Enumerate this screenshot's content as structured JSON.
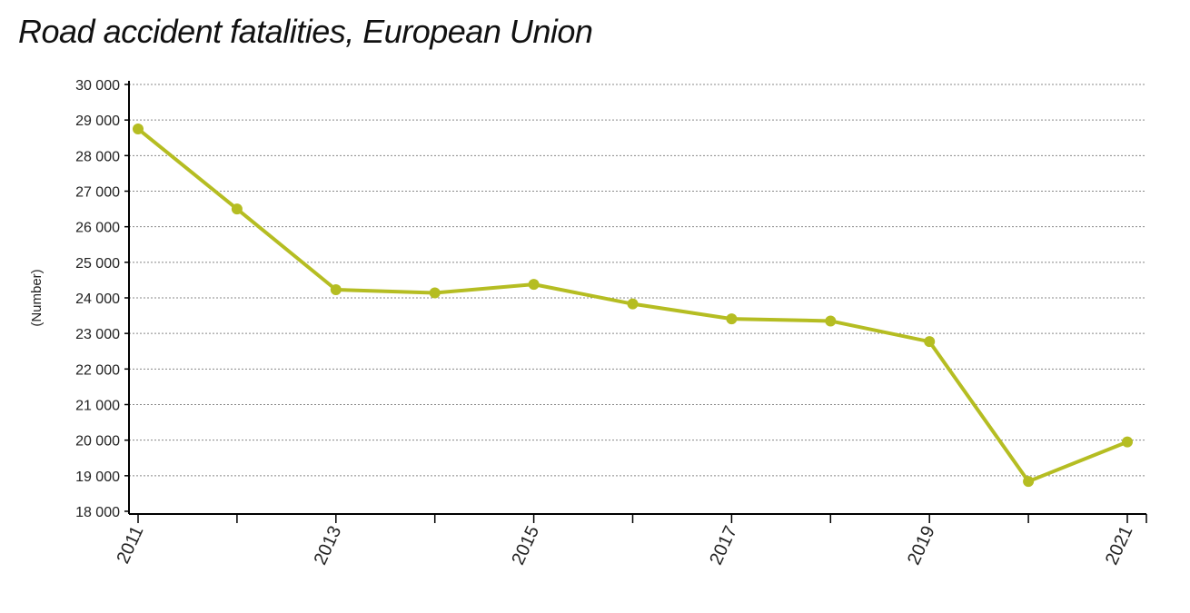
{
  "chart_data": {
    "type": "line",
    "title": "Road accident fatalities, European Union",
    "xlabel": "",
    "ylabel": "(Number)",
    "x": [
      2011,
      2012,
      2013,
      2014,
      2015,
      2016,
      2017,
      2018,
      2019,
      2020,
      2021
    ],
    "x_tick_labels": [
      "2011",
      "2013",
      "2015",
      "2017",
      "2019",
      "2021"
    ],
    "y_tick_labels": [
      "30 000",
      "29 000",
      "28 000",
      "27 000",
      "26 000",
      "25 000",
      "24 000",
      "23 000",
      "22 000",
      "21 000",
      "20 000",
      "19 000",
      "18 000"
    ],
    "ylim": [
      18000,
      30000
    ],
    "grid": true,
    "series": [
      {
        "values": [
          28750,
          26500,
          24230,
          24140,
          24380,
          23830,
          23410,
          23350,
          22770,
          18840,
          19950
        ],
        "color": "#b5bd22"
      }
    ]
  }
}
